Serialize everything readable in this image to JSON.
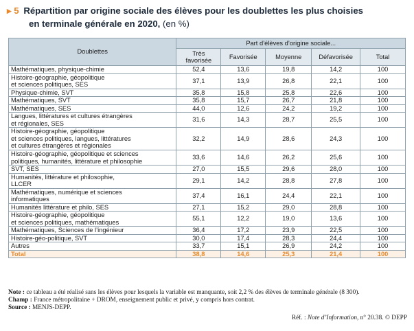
{
  "title": {
    "marker": "▸",
    "number": "5",
    "line1": "Répartition par origine sociale des élèves pour les doublettes les plus choisies",
    "line2": "en terminale générale en 2020,",
    "unit": "(en %)"
  },
  "table": {
    "doublettes_header": "Doublettes",
    "group_header": "Part d’élèves d’origine sociale...",
    "columns": [
      "Très favorisée",
      "Favorisée",
      "Moyenne",
      "Défavorisée",
      "Total"
    ],
    "rows": [
      {
        "label": "Mathématiques, physique-chimie",
        "values": [
          "52,4",
          "13,6",
          "19,8",
          "14,2",
          "100"
        ]
      },
      {
        "label": "Histoire-géographie, géopolitique\net sciences politiques, SES",
        "values": [
          "37,1",
          "13,9",
          "26,8",
          "22,1",
          "100"
        ]
      },
      {
        "label": "Physique-chimie, SVT",
        "values": [
          "35,8",
          "15,8",
          "25,8",
          "22,6",
          "100"
        ]
      },
      {
        "label": "Mathématiques, SVT",
        "values": [
          "35,8",
          "15,7",
          "26,7",
          "21,8",
          "100"
        ]
      },
      {
        "label": "Mathématiques, SES",
        "values": [
          "44,0",
          "12,6",
          "24,2",
          "19,2",
          "100"
        ]
      },
      {
        "label": "Langues, littératures et cultures étrangères\net régionales, SES",
        "values": [
          "31,6",
          "14,3",
          "28,7",
          "25,5",
          "100"
        ]
      },
      {
        "label": "Histoire-géographie, géopolitique\net sciences politiques, langues, littératures\net cultures étrangères et régionales",
        "values": [
          "32,2",
          "14,9",
          "28,6",
          "24,3",
          "100"
        ]
      },
      {
        "label": "Histoire-géographie, géopolitique et sciences\npolitiques, humanités, littérature et philosophie",
        "values": [
          "33,6",
          "14,6",
          "26,2",
          "25,6",
          "100"
        ]
      },
      {
        "label": "SVT, SES",
        "values": [
          "27,0",
          "15,5",
          "29,6",
          "28,0",
          "100"
        ]
      },
      {
        "label": "Humanités, littérature et philosophie,\nLLCER",
        "values": [
          "29,1",
          "14,2",
          "28,8",
          "27,8",
          "100"
        ]
      },
      {
        "label": "Mathématiques, numérique et sciences\ninformatiques",
        "values": [
          "37,4",
          "16,1",
          "24,4",
          "22,1",
          "100"
        ]
      },
      {
        "label": "Humanités littérature et philo, SES",
        "values": [
          "27,1",
          "15,2",
          "29,0",
          "28,8",
          "100"
        ]
      },
      {
        "label": "Histoire-géographie, géopolitique\net sciences politiques, mathématiques",
        "values": [
          "55,1",
          "12,2",
          "19,0",
          "13,6",
          "100"
        ]
      },
      {
        "label": "Mathématiques, Sciences de l’ingénieur",
        "values": [
          "36,4",
          "17,2",
          "23,9",
          "22,5",
          "100"
        ]
      },
      {
        "label": "Histoire-géo-politique, SVT",
        "values": [
          "30,0",
          "17,4",
          "28,3",
          "24,4",
          "100"
        ]
      },
      {
        "label": "Autres",
        "values": [
          "33,7",
          "15,1",
          "26,9",
          "24,2",
          "100"
        ]
      }
    ],
    "total": {
      "label": "Total",
      "values": [
        "38,8",
        "14,6",
        "25,3",
        "21,4",
        "100"
      ]
    }
  },
  "notes": {
    "note_label": "Note :",
    "note_text": "ce tableau a été réalisé sans les élèves pour lesquels la variable est manquante, soit 2,2 % des élèves de terminale générale (8 300).",
    "champ_label": "Champ :",
    "champ_text": "France métropolitaine + DROM, enseignement public et privé, y compris hors contrat.",
    "source_label": "Source :",
    "source_text": "MENJS-DEPP."
  },
  "reference": {
    "prefix": "Réf. :",
    "publication": "Note d’Information",
    "suffix": ", n° 20.38. © DEPP"
  },
  "colors": {
    "accent": "#e8892b",
    "header_dark": "#ccd8e1",
    "header_light": "#e3eaef",
    "title": "#1d2a3a"
  }
}
